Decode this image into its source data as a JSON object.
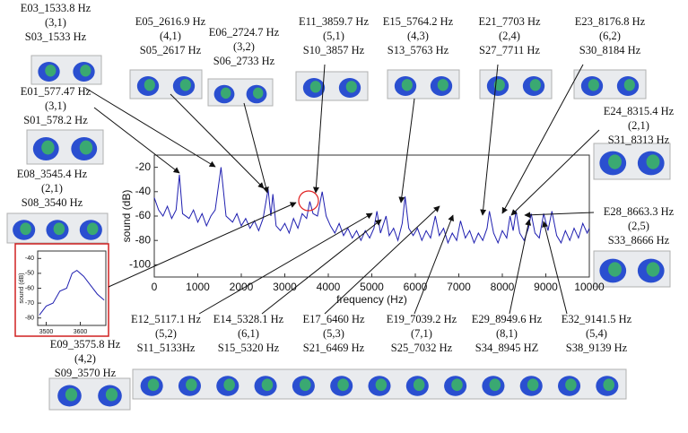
{
  "chart_data": [
    {
      "type": "line",
      "xlabel": "frequency (Hz)",
      "ylabel": "sound (dB)",
      "xlim": [
        0,
        10000
      ],
      "xticks": [
        0,
        1000,
        2000,
        3000,
        4000,
        5000,
        6000,
        7000,
        8000,
        9000,
        10000
      ],
      "ylim": [
        -110,
        -10
      ],
      "yticks": [
        -20,
        -40,
        -60,
        -80,
        -100
      ],
      "series": [
        {
          "color": "#1f1fb0",
          "x": [
            0,
            100,
            200,
            300,
            400,
            500,
            577,
            650,
            800,
            900,
            1000,
            1100,
            1200,
            1300,
            1400,
            1534,
            1650,
            1800,
            1900,
            2000,
            2100,
            2200,
            2300,
            2400,
            2500,
            2617,
            2680,
            2725,
            2800,
            2900,
            3000,
            3100,
            3200,
            3300,
            3400,
            3500,
            3576,
            3650,
            3750,
            3860,
            3950,
            4050,
            4150,
            4250,
            4350,
            4450,
            4550,
            4650,
            4750,
            4850,
            4950,
            5050,
            5117,
            5200,
            5328,
            5400,
            5500,
            5600,
            5700,
            5764,
            5850,
            5950,
            6050,
            6150,
            6250,
            6350,
            6460,
            6550,
            6650,
            6750,
            6850,
            6950,
            7039,
            7150,
            7250,
            7350,
            7450,
            7550,
            7650,
            7703,
            7800,
            7900,
            8000,
            8100,
            8177,
            8250,
            8315,
            8400,
            8500,
            8600,
            8663,
            8750,
            8850,
            8950,
            9050,
            9141,
            9250,
            9350,
            9450,
            9550,
            9650,
            9750,
            9850,
            9950,
            10000
          ],
          "values": [
            -45,
            -55,
            -60,
            -52,
            -62,
            -55,
            -26,
            -58,
            -62,
            -55,
            -65,
            -58,
            -68,
            -60,
            -55,
            -20,
            -60,
            -65,
            -58,
            -68,
            -62,
            -70,
            -64,
            -72,
            -62,
            -38,
            -60,
            -42,
            -68,
            -72,
            -66,
            -74,
            -62,
            -70,
            -58,
            -62,
            -48,
            -58,
            -60,
            -40,
            -60,
            -68,
            -74,
            -66,
            -76,
            -70,
            -78,
            -72,
            -80,
            -72,
            -78,
            -70,
            -56,
            -74,
            -60,
            -76,
            -70,
            -80,
            -66,
            -44,
            -70,
            -76,
            -70,
            -80,
            -72,
            -78,
            -60,
            -76,
            -70,
            -82,
            -74,
            -80,
            -64,
            -78,
            -72,
            -82,
            -74,
            -80,
            -70,
            -56,
            -74,
            -82,
            -72,
            -78,
            -60,
            -72,
            -56,
            -74,
            -80,
            -70,
            -58,
            -74,
            -78,
            -58,
            -72,
            -56,
            -76,
            -82,
            -72,
            -80,
            -70,
            -78,
            -66,
            -74,
            -70
          ]
        }
      ],
      "annotations": [
        {
          "lines": [
            "E03_1533.8 Hz",
            "(3,1)",
            "S03_1533 Hz"
          ]
        },
        {
          "lines": [
            "E05_2616.9 Hz",
            "(4,1)",
            "S05_2617 Hz"
          ]
        },
        {
          "lines": [
            "E06_2724.7 Hz",
            "(3,2)",
            "S06_2733 Hz"
          ]
        },
        {
          "lines": [
            "E11_3859.7 Hz",
            "(5,1)",
            "S10_3857 Hz"
          ]
        },
        {
          "lines": [
            "E15_5764.2 Hz",
            "(4,3)",
            "S13_5763 Hz"
          ]
        },
        {
          "lines": [
            "E21_7703 Hz",
            "(2,4)",
            "S27_7711 Hz"
          ]
        },
        {
          "lines": [
            "E23_8176.8 Hz",
            "(6,2)",
            "S30_8184 Hz"
          ]
        },
        {
          "lines": [
            "E01_577.47 Hz",
            "(3,1)",
            "S01_578.2 Hz"
          ]
        },
        {
          "lines": [
            "E24_8315.4 Hz",
            "(2,1)",
            "S31_8313 Hz"
          ]
        },
        {
          "lines": [
            "E08_3545.4 Hz",
            "(2,1)",
            "S08_3540 Hz"
          ]
        },
        {
          "lines": [
            "E28_8663.3 Hz",
            "(2,5)",
            "S33_8666 Hz"
          ]
        },
        {
          "lines": [
            "E09_3575.8 Hz",
            "(4,2)",
            "S09_3570 Hz"
          ]
        },
        {
          "lines": [
            "E12_5117.1 Hz",
            "(5,2)",
            "S11_5133Hz"
          ]
        },
        {
          "lines": [
            "E14_5328.1 Hz",
            "(6,1)",
            "S15_5320 Hz"
          ]
        },
        {
          "lines": [
            "E17_6460 Hz",
            "(5,3)",
            "S21_6469 Hz"
          ]
        },
        {
          "lines": [
            "E19_7039.2 Hz",
            "(7,1)",
            "S25_7032 Hz"
          ]
        },
        {
          "lines": [
            "E29_8949.6 Hz",
            "(8,1)",
            "S34_8945 HZ"
          ]
        },
        {
          "lines": [
            "E32_9141.5 Hz",
            "(5,4)",
            "S38_9139 Hz"
          ]
        }
      ]
    },
    {
      "type": "line",
      "ylabel": "sound (dB)",
      "xlim": [
        3475,
        3675
      ],
      "xticks": [
        3500,
        3600
      ],
      "ylim": [
        -85,
        -35
      ],
      "yticks": [
        -40,
        -50,
        -60,
        -70,
        -80
      ],
      "series": [
        {
          "color": "#1f1fb0",
          "x": [
            3480,
            3500,
            3520,
            3540,
            3560,
            3576,
            3590,
            3610,
            3630,
            3650,
            3670
          ],
          "values": [
            -78,
            -72,
            -70,
            -62,
            -60,
            -50,
            -48,
            -52,
            -58,
            -64,
            -68
          ]
        }
      ]
    }
  ]
}
